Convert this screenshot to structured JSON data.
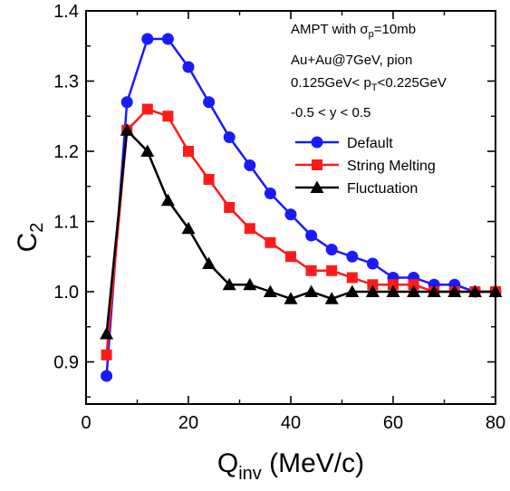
{
  "chart_data": {
    "type": "line",
    "xlabel": {
      "main": "Q",
      "sub": "inv",
      "unit": " (MeV/c)"
    },
    "ylabel": {
      "main": "C",
      "sub": "2"
    },
    "xlim": [
      0,
      80
    ],
    "ylim": [
      0.84,
      1.4
    ],
    "xticks": [
      0,
      20,
      40,
      60,
      80
    ],
    "xtick_labels": [
      "0",
      "20",
      "40",
      "60",
      "80"
    ],
    "yticks": [
      0.9,
      1.0,
      1.1,
      1.2,
      1.3,
      1.4
    ],
    "ytick_labels": [
      "0.9",
      "1.0",
      "1.1",
      "1.2",
      "1.3",
      "1.4"
    ],
    "grid": false,
    "legend_position": "right, below annotations",
    "annotations": {
      "line1_a": "AMPT with σ",
      "line1_sub": "p",
      "line1_b": "=10mb",
      "line2": "Au+Au@7GeV, pion",
      "line3_a": "0.125GeV< p",
      "line3_sub": "T",
      "line3_b": "<0.225GeV",
      "line4": "-0.5 < y < 0.5"
    },
    "series": [
      {
        "name": "Default",
        "color": "#1a1aff",
        "marker": "circle",
        "x": [
          4,
          8,
          12,
          16,
          20,
          24,
          28,
          32,
          36,
          40,
          44,
          48,
          52,
          56,
          60,
          64,
          68,
          72,
          76,
          80
        ],
        "y": [
          0.88,
          1.27,
          1.36,
          1.36,
          1.32,
          1.27,
          1.22,
          1.18,
          1.14,
          1.11,
          1.08,
          1.06,
          1.05,
          1.04,
          1.02,
          1.02,
          1.01,
          1.01,
          1.0,
          1.0
        ]
      },
      {
        "name": "String Melting",
        "color": "#ff1a1a",
        "marker": "square",
        "x": [
          4,
          8,
          12,
          16,
          20,
          24,
          28,
          32,
          36,
          40,
          44,
          48,
          52,
          56,
          60,
          64,
          68,
          72,
          76,
          80
        ],
        "y": [
          0.91,
          1.23,
          1.26,
          1.25,
          1.2,
          1.16,
          1.12,
          1.09,
          1.07,
          1.05,
          1.03,
          1.03,
          1.02,
          1.01,
          1.01,
          1.01,
          1.0,
          1.0,
          1.0,
          1.0
        ]
      },
      {
        "name": "Fluctuation",
        "color": "#000000",
        "marker": "triangle",
        "x": [
          4,
          8,
          12,
          16,
          20,
          24,
          28,
          32,
          36,
          40,
          44,
          48,
          52,
          56,
          60,
          64,
          68,
          72,
          76,
          80
        ],
        "y": [
          0.94,
          1.23,
          1.2,
          1.13,
          1.09,
          1.04,
          1.01,
          1.01,
          1.0,
          0.99,
          1.0,
          0.99,
          1.0,
          1.0,
          1.0,
          1.0,
          1.0,
          1.0,
          1.0,
          1.0
        ]
      }
    ]
  }
}
